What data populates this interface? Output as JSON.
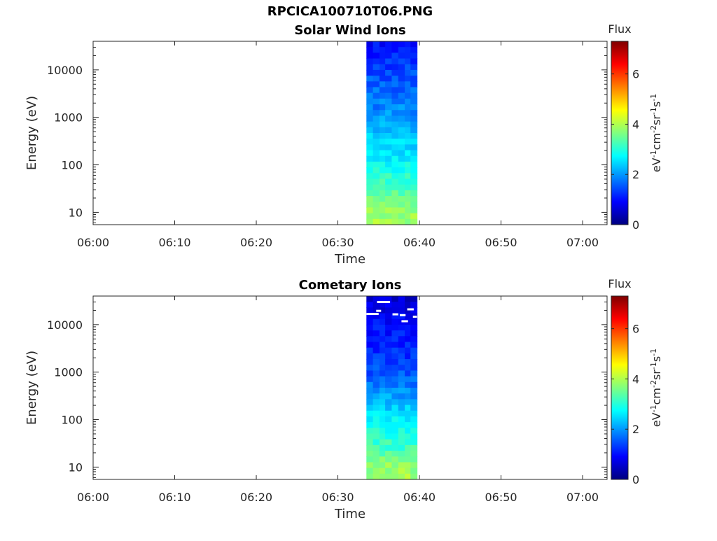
{
  "figure": {
    "title": "RPCICA100710T06.PNG"
  },
  "chart_data": [
    {
      "type": "heatmap",
      "title": "Solar Wind Ions",
      "xlabel": "Time",
      "ylabel": "Energy (eV)",
      "x_ticks": [
        "06:00",
        "06:10",
        "06:20",
        "06:30",
        "06:40",
        "06:50",
        "07:00"
      ],
      "x_range_minutes": [
        0,
        63
      ],
      "y_scale": "log",
      "y_ticks": [
        "10",
        "100",
        "1000",
        "10000"
      ],
      "y_tick_values": [
        10,
        100,
        1000,
        10000
      ],
      "y_range": [
        5.5,
        40000
      ],
      "data_time_range_minutes": [
        33.5,
        39.7
      ],
      "data_time_columns": [
        33.5,
        34.3,
        35.1,
        35.8,
        36.6,
        37.4,
        38.2,
        38.9
      ],
      "colorbar": {
        "title": "Flux",
        "label": "eV-1cm-2sr-1s-1",
        "range": [
          0,
          7.3
        ],
        "ticks": [
          "0",
          "2",
          "4",
          "6"
        ],
        "tick_values": [
          0,
          2,
          4,
          6
        ],
        "colormap": "jet"
      },
      "energy_profile": [
        {
          "energy": 32000,
          "value": 1.0
        },
        {
          "energy": 18000,
          "value": 1.2
        },
        {
          "energy": 10000,
          "value": 1.4
        },
        {
          "energy": 5000,
          "value": 1.6
        },
        {
          "energy": 2000,
          "value": 1.8
        },
        {
          "energy": 1000,
          "value": 2.0
        },
        {
          "energy": 500,
          "value": 2.3
        },
        {
          "energy": 200,
          "value": 2.5
        },
        {
          "energy": 100,
          "value": 2.8
        },
        {
          "energy": 50,
          "value": 3.1
        },
        {
          "energy": 25,
          "value": 3.4
        },
        {
          "energy": 10,
          "value": 3.8
        },
        {
          "energy": 6,
          "value": 3.9
        }
      ],
      "gaps": []
    },
    {
      "type": "heatmap",
      "title": "Cometary Ions",
      "xlabel": "Time",
      "ylabel": "Energy (eV)",
      "x_ticks": [
        "06:00",
        "06:10",
        "06:20",
        "06:30",
        "06:40",
        "06:50",
        "07:00"
      ],
      "x_range_minutes": [
        0,
        63
      ],
      "y_scale": "log",
      "y_ticks": [
        "10",
        "100",
        "1000",
        "10000"
      ],
      "y_tick_values": [
        10,
        100,
        1000,
        10000
      ],
      "y_range": [
        5.5,
        40000
      ],
      "data_time_range_minutes": [
        33.5,
        39.7
      ],
      "data_time_columns": [
        33.5,
        34.3,
        35.1,
        35.8,
        36.6,
        37.4,
        38.2,
        38.9
      ],
      "colorbar": {
        "title": "Flux",
        "label": "eV-1cm-2sr-1s-1",
        "range": [
          0,
          7.3
        ],
        "ticks": [
          "0",
          "2",
          "4",
          "6"
        ],
        "tick_values": [
          0,
          2,
          4,
          6
        ],
        "colormap": "jet"
      },
      "energy_profile": [
        {
          "energy": 32000,
          "value": 0.6
        },
        {
          "energy": 18000,
          "value": 0.8
        },
        {
          "energy": 10000,
          "value": 1.0
        },
        {
          "energy": 5000,
          "value": 1.1
        },
        {
          "energy": 2000,
          "value": 1.3
        },
        {
          "energy": 1000,
          "value": 1.5
        },
        {
          "energy": 500,
          "value": 1.8
        },
        {
          "energy": 200,
          "value": 2.3
        },
        {
          "energy": 100,
          "value": 2.7
        },
        {
          "energy": 50,
          "value": 3.0
        },
        {
          "energy": 25,
          "value": 3.2
        },
        {
          "energy": 10,
          "value": 3.8
        },
        {
          "energy": 6,
          "value": 3.9
        }
      ],
      "gaps": [
        {
          "t0": 34.8,
          "t1": 36.4,
          "energy": 30000
        },
        {
          "t0": 38.5,
          "t1": 39.3,
          "energy": 21000
        },
        {
          "t0": 34.7,
          "t1": 35.3,
          "energy": 19500
        },
        {
          "t0": 33.5,
          "t1": 35.0,
          "energy": 16800
        },
        {
          "t0": 36.7,
          "t1": 37.4,
          "energy": 16500
        },
        {
          "t0": 37.6,
          "t1": 38.3,
          "energy": 15800
        },
        {
          "t0": 39.2,
          "t1": 39.7,
          "energy": 14700
        },
        {
          "t0": 37.8,
          "t1": 38.6,
          "energy": 11800
        }
      ]
    }
  ]
}
